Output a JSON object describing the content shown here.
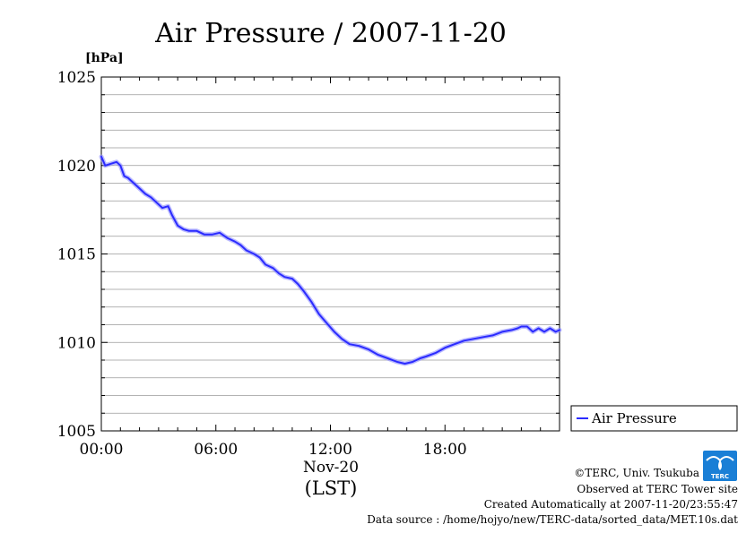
{
  "chart_data": {
    "type": "line",
    "title": "Air Pressure / 2007-11-20",
    "ylabel_unit": "[hPa]",
    "xlabel_date": "Nov-20",
    "xlabel_tz": "(LST)",
    "ylim": [
      1005,
      1025
    ],
    "xlim_hours": [
      0,
      24
    ],
    "yticks": [
      1005,
      1010,
      1015,
      1020,
      1025
    ],
    "ytick_labels": [
      "1005",
      "1010",
      "1015",
      "1020",
      "1025"
    ],
    "xticks_hours": [
      0,
      6,
      12,
      18
    ],
    "xtick_labels": [
      "00:00",
      "06:00",
      "12:00",
      "18:00"
    ],
    "grid": true,
    "legend_position": "right",
    "series": [
      {
        "name": "Air Pressure",
        "color": "#2b2bff",
        "x_hours": [
          0.0,
          0.2,
          0.5,
          0.8,
          1.0,
          1.2,
          1.4,
          1.7,
          2.0,
          2.3,
          2.6,
          2.9,
          3.2,
          3.5,
          3.7,
          4.0,
          4.3,
          4.6,
          5.0,
          5.4,
          5.8,
          6.2,
          6.6,
          7.0,
          7.3,
          7.6,
          8.0,
          8.3,
          8.6,
          9.0,
          9.3,
          9.6,
          10.0,
          10.3,
          10.6,
          11.0,
          11.4,
          11.8,
          12.2,
          12.6,
          13.0,
          13.5,
          14.0,
          14.5,
          15.0,
          15.5,
          15.9,
          16.3,
          16.7,
          17.0,
          17.5,
          18.0,
          18.5,
          19.0,
          19.5,
          20.0,
          20.5,
          21.0,
          21.5,
          21.8,
          22.0,
          22.3,
          22.6,
          22.9,
          23.2,
          23.5,
          23.8,
          24.0
        ],
        "values": [
          1020.5,
          1020.0,
          1020.1,
          1020.2,
          1020.0,
          1019.4,
          1019.3,
          1019.0,
          1018.7,
          1018.4,
          1018.2,
          1017.9,
          1017.6,
          1017.7,
          1017.2,
          1016.6,
          1016.4,
          1016.3,
          1016.3,
          1016.1,
          1016.1,
          1016.2,
          1015.9,
          1015.7,
          1015.5,
          1015.2,
          1015.0,
          1014.8,
          1014.4,
          1014.2,
          1013.9,
          1013.7,
          1013.6,
          1013.3,
          1012.9,
          1012.3,
          1011.6,
          1011.1,
          1010.6,
          1010.2,
          1009.9,
          1009.8,
          1009.6,
          1009.3,
          1009.1,
          1008.9,
          1008.8,
          1008.9,
          1009.1,
          1009.2,
          1009.4,
          1009.7,
          1009.9,
          1010.1,
          1010.2,
          1010.3,
          1010.4,
          1010.6,
          1010.7,
          1010.8,
          1010.9,
          1010.9,
          1010.6,
          1010.8,
          1010.6,
          1010.8,
          1010.6,
          1010.7
        ]
      }
    ]
  },
  "legend": {
    "label": "Air Pressure"
  },
  "footer": {
    "copyright": "©TERC, Univ. Tsukuba",
    "observed": "Observed at TERC Tower site",
    "created": "Created Automatically at 2007-11-20/23:55:47",
    "source": "Data source : /home/hojyo/new/TERC-data/sorted_data/MET.10s.dat"
  },
  "logo": {
    "text": "TERC",
    "color": "#1a7fd6"
  }
}
